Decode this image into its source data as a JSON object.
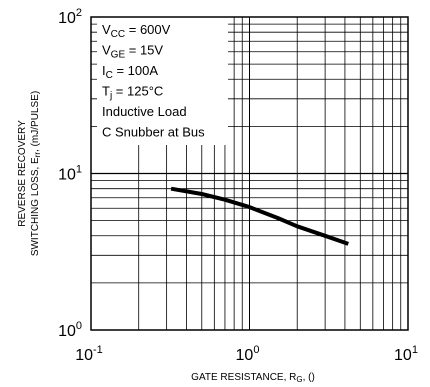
{
  "chart_data": {
    "type": "line",
    "xscale": "log",
    "yscale": "log",
    "xlim": [
      0.1,
      10
    ],
    "ylim": [
      1,
      100
    ],
    "grid": true,
    "xlabel": {
      "text": "GATE RESISTANCE, R",
      "sub": "G",
      "suffix": ", ()"
    },
    "ylabel": {
      "line1": "REVERSE RECOVERY",
      "line2": {
        "text": "SWITCHING LOSS, E",
        "sub": "rr",
        "suffix": ", (mJ/PULSE)"
      }
    },
    "x_ticks": [
      {
        "base": "10",
        "exp": "-1",
        "value": 0.1
      },
      {
        "base": "10",
        "exp": "0",
        "value": 1
      },
      {
        "base": "10",
        "exp": "1",
        "value": 10
      }
    ],
    "y_ticks": [
      {
        "base": "10",
        "exp": "0",
        "value": 1
      },
      {
        "base": "10",
        "exp": "1",
        "value": 10
      },
      {
        "base": "10",
        "exp": "2",
        "value": 100
      }
    ],
    "conditions": [
      {
        "main": "V",
        "sub": "CC",
        "rest": " = 600V"
      },
      {
        "main": "V",
        "sub": "GE",
        "rest": " = 15V"
      },
      {
        "main": "I",
        "sub": "C",
        "rest": " = 100A"
      },
      {
        "main": "T",
        "sub": "j",
        "rest": " = 125°C"
      },
      {
        "main": "Inductive Load",
        "sub": "",
        "rest": ""
      },
      {
        "main": "C Snubber at Bus",
        "sub": "",
        "rest": ""
      }
    ],
    "series": [
      {
        "x": [
          0.32,
          0.5,
          0.7,
          1.0,
          1.5,
          2.0,
          3.0,
          4.2
        ],
        "y": [
          8.0,
          7.4,
          6.8,
          6.1,
          5.2,
          4.6,
          4.0,
          3.55
        ]
      }
    ]
  }
}
